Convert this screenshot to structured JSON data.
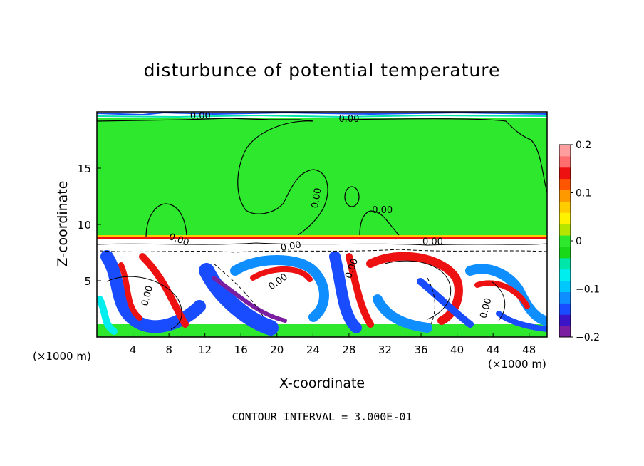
{
  "chart_data": {
    "type": "heatmap",
    "title": "disturbunce of potential temperature",
    "xlabel": "X-coordinate",
    "ylabel": "Z-coordinate",
    "x_unit": "(×1000 m)",
    "x_ticks": [
      4,
      8,
      12,
      16,
      20,
      24,
      28,
      32,
      36,
      40,
      44,
      48
    ],
    "y_ticks": [
      5,
      10,
      15
    ],
    "xlim": [
      0,
      50
    ],
    "ylim": [
      0,
      20
    ],
    "colorbar": {
      "range": [
        -0.2,
        0.2
      ],
      "tick_labels": [
        "0.2",
        "0.1",
        "0",
        "−0.1",
        "−0.2"
      ],
      "tick_values": [
        0.2,
        0.1,
        0,
        -0.1,
        -0.2
      ],
      "colors": [
        "#7b1fa0",
        "#3c14c8",
        "#1a4cff",
        "#0f8fff",
        "#00c8ff",
        "#00eeee",
        "#00e6a8",
        "#18d818",
        "#2ee82e",
        "#b6e600",
        "#fff200",
        "#ffcc00",
        "#ff9900",
        "#ff5500",
        "#ee1111",
        "#ff6e6e",
        "#ff9e9e"
      ]
    },
    "contour_labels": [
      "0.00",
      "0.00",
      "0.00",
      "0.00",
      "0.00",
      "0.00",
      "0.00",
      "0.00",
      "0.00",
      "0.00",
      "0.00"
    ],
    "contour_interval_text": "CONTOUR INTERVAL = 3.000E-01"
  }
}
